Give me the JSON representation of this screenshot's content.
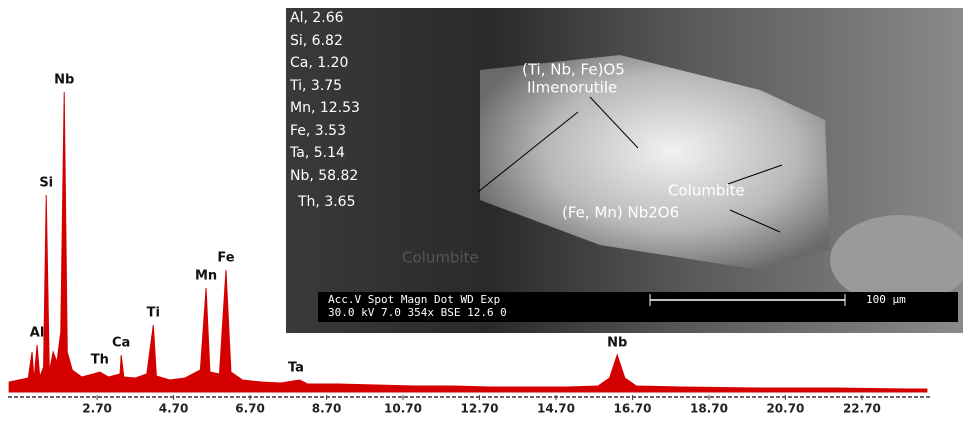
{
  "chart_data": {
    "type": "area",
    "x": [
      0.4,
      0.9,
      1.0,
      1.05,
      1.13,
      1.2,
      1.3,
      1.37,
      1.45,
      1.55,
      1.65,
      1.75,
      1.84,
      1.92,
      2.05,
      2.3,
      2.6,
      2.77,
      3.0,
      3.3,
      3.33,
      3.4,
      3.7,
      4.0,
      4.17,
      4.25,
      4.6,
      5.0,
      5.4,
      5.55,
      5.65,
      5.9,
      6.07,
      6.2,
      6.5,
      7.0,
      7.5,
      8.0,
      8.2,
      9.0,
      10,
      11,
      12,
      13,
      14,
      15,
      15.8,
      16.1,
      16.3,
      16.5,
      16.8,
      18,
      20,
      22,
      24,
      24.4
    ],
    "series": [
      {
        "color": "#d40000",
        "values": [
          10,
          14,
          40,
          12,
          47,
          15,
          25,
          197,
          20,
          40,
          30,
          60,
          300,
          40,
          22,
          15,
          18,
          20,
          15,
          18,
          37,
          15,
          14,
          18,
          67,
          16,
          12,
          14,
          22,
          104,
          20,
          18,
          122,
          20,
          12,
          10,
          9,
          12,
          8,
          8,
          7,
          6,
          6,
          5,
          5,
          5,
          6,
          14,
          37,
          14,
          6,
          5,
          4,
          4,
          3,
          3
        ]
      }
    ],
    "xlim": [
      0.37,
      24.48
    ],
    "ylim": [
      0,
      310
    ],
    "xticks": [
      {
        "value": 2.7,
        "label": "2.70"
      },
      {
        "value": 4.7,
        "label": "4.70"
      },
      {
        "value": 6.7,
        "label": "6.70"
      },
      {
        "value": 8.7,
        "label": "8.70"
      },
      {
        "value": 10.7,
        "label": "10.70"
      },
      {
        "value": 12.7,
        "label": "12.70"
      },
      {
        "value": 14.7,
        "label": "14.70"
      },
      {
        "value": 16.7,
        "label": "16.70"
      },
      {
        "value": 18.7,
        "label": "18.70"
      },
      {
        "value": 20.7,
        "label": "20.70"
      },
      {
        "value": 22.7,
        "label": "22.70"
      }
    ],
    "annotations": [
      {
        "text": "Al",
        "x": 1.13,
        "y": 47
      },
      {
        "text": "Si",
        "x": 1.37,
        "y": 197
      },
      {
        "text": "Nb",
        "x": 1.84,
        "y": 300
      },
      {
        "text": "Th",
        "x": 2.77,
        "y": 20
      },
      {
        "text": "Ca",
        "x": 3.33,
        "y": 37
      },
      {
        "text": "Ti",
        "x": 4.17,
        "y": 67
      },
      {
        "text": "Mn",
        "x": 5.55,
        "y": 104
      },
      {
        "text": "Fe",
        "x": 6.07,
        "y": 122
      },
      {
        "text": "Ta",
        "x": 7.9,
        "y": 12
      },
      {
        "text": "Nb",
        "x": 16.3,
        "y": 37
      }
    ]
  },
  "image": {
    "composition": [
      "Al, 2.66",
      "Si, 6.82",
      "Ca, 1.20",
      "Ti, 3.75",
      "Mn, 12.53",
      "Fe, 3.53",
      "Ta, 5.14",
      "Nb, 58.82",
      "Th, 3.65"
    ],
    "labels": [
      "(Ti, Nb, Fe)O5",
      "Ilmenorutile",
      "Columbite",
      "(Fe, Mn) Nb2O6",
      "Columbite"
    ],
    "info_header": "Acc.V  Spot  Magn     Dot   WD   Exp",
    "info_values": "30.0 kV  7.0   354x     BSE  12.6  0",
    "scale": "100 µm"
  }
}
